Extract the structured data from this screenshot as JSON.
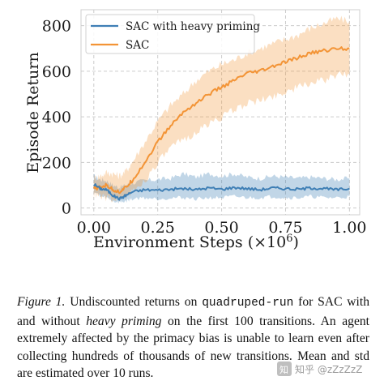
{
  "chart_data": {
    "type": "line",
    "xlabel": "Environment Steps (×10",
    "xlabel_exponent": "6",
    "xlabel_close": ")",
    "ylabel": "Episode Return",
    "xlim": [
      -0.05,
      1.04
    ],
    "ylim": [
      -30,
      870
    ],
    "x_ticks": [
      "0.00",
      "0.25",
      "0.50",
      "0.75",
      "1.00"
    ],
    "x_tick_values": [
      0,
      0.25,
      0.5,
      0.75,
      1.0
    ],
    "y_ticks": [
      "0",
      "200",
      "400",
      "600",
      "800"
    ],
    "y_tick_values": [
      0,
      200,
      400,
      600,
      800
    ],
    "grid": true,
    "legend_placement": "top-left",
    "series": [
      {
        "name": "SAC with heavy priming",
        "color": "#3f7fb5",
        "x": [
          0.0,
          0.025,
          0.05,
          0.075,
          0.1,
          0.125,
          0.15,
          0.2,
          0.25,
          0.3,
          0.35,
          0.4,
          0.45,
          0.5,
          0.55,
          0.6,
          0.65,
          0.7,
          0.75,
          0.8,
          0.85,
          0.9,
          0.95,
          1.0
        ],
        "mean": [
          105,
          85,
          80,
          55,
          40,
          55,
          70,
          80,
          78,
          82,
          85,
          80,
          88,
          82,
          90,
          85,
          80,
          88,
          85,
          82,
          88,
          85,
          80,
          85
        ],
        "lower": [
          75,
          50,
          45,
          30,
          25,
          30,
          40,
          45,
          40,
          45,
          45,
          40,
          45,
          45,
          50,
          45,
          45,
          50,
          45,
          45,
          50,
          45,
          45,
          50
        ],
        "upper": [
          140,
          125,
          120,
          100,
          90,
          100,
          110,
          120,
          125,
          130,
          150,
          135,
          150,
          140,
          150,
          135,
          130,
          140,
          135,
          130,
          135,
          130,
          125,
          130
        ]
      },
      {
        "name": "SAC",
        "color": "#f39436",
        "x": [
          0.0,
          0.025,
          0.05,
          0.075,
          0.1,
          0.125,
          0.15,
          0.2,
          0.25,
          0.3,
          0.35,
          0.4,
          0.45,
          0.5,
          0.55,
          0.6,
          0.65,
          0.7,
          0.75,
          0.8,
          0.85,
          0.9,
          0.95,
          1.0
        ],
        "mean": [
          85,
          90,
          100,
          80,
          70,
          90,
          120,
          200,
          290,
          360,
          420,
          460,
          500,
          530,
          560,
          590,
          600,
          620,
          640,
          660,
          680,
          690,
          700,
          700
        ],
        "lower": [
          55,
          50,
          45,
          40,
          40,
          50,
          70,
          120,
          200,
          260,
          300,
          330,
          370,
          400,
          430,
          460,
          470,
          490,
          510,
          530,
          550,
          560,
          580,
          590
        ],
        "upper": [
          130,
          140,
          155,
          150,
          140,
          160,
          200,
          290,
          380,
          450,
          500,
          560,
          600,
          630,
          650,
          680,
          700,
          720,
          740,
          760,
          790,
          810,
          830,
          820
        ]
      }
    ]
  },
  "caption": {
    "label": "Figure 1.",
    "part1": " Undiscounted returns on ",
    "code": "quadruped-run",
    "part2": " for SAC with and without ",
    "emphasis": "heavy priming",
    "part3": " on the first 100 transitions. An agent extremely affected by the primacy bias is unable to learn even after collecting hundreds of thousands of new transitions. Mean and std are estimated over 10 runs."
  },
  "watermark": {
    "platform_icon": "zhihu-logo",
    "text": "知乎 @zZzZzZ"
  }
}
